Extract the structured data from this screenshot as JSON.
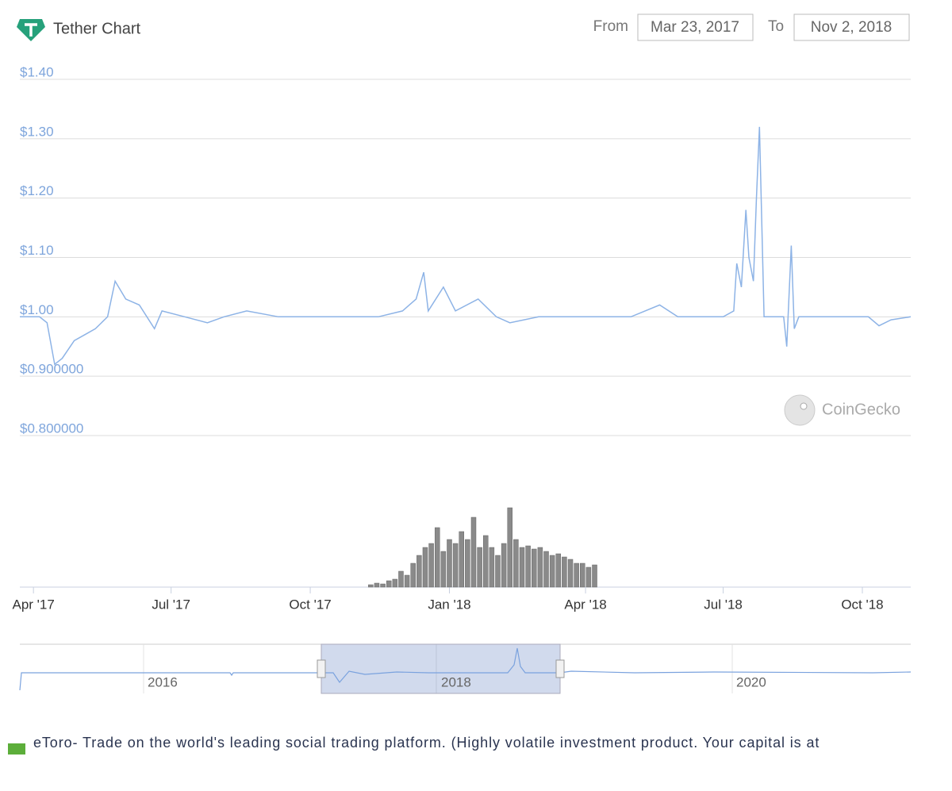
{
  "header": {
    "title": "Tether Chart",
    "from_label": "From",
    "from_date": "Mar 23, 2017",
    "to_label": "To",
    "to_date": "Nov 2, 2018"
  },
  "watermark": "CoinGecko",
  "chart_data": {
    "type": "line",
    "xlim": [
      "2017-03-23",
      "2018-11-02"
    ],
    "xticks": [
      {
        "value": "2017-04-01",
        "label": "Apr '17"
      },
      {
        "value": "2017-07-01",
        "label": "Jul '17"
      },
      {
        "value": "2017-10-01",
        "label": "Oct '17"
      },
      {
        "value": "2018-01-01",
        "label": "Jan '18"
      },
      {
        "value": "2018-04-01",
        "label": "Apr '18"
      },
      {
        "value": "2018-07-01",
        "label": "Jul '18"
      },
      {
        "value": "2018-10-01",
        "label": "Oct '18"
      }
    ],
    "ylim": [
      0.8,
      1.4
    ],
    "yticks": [
      {
        "value": 1.4,
        "label": "$1.40"
      },
      {
        "value": 1.3,
        "label": "$1.30"
      },
      {
        "value": 1.2,
        "label": "$1.20"
      },
      {
        "value": 1.1,
        "label": "$1.10"
      },
      {
        "value": 1.0,
        "label": "$1.00"
      },
      {
        "value": 0.9,
        "label": "$0.900000"
      },
      {
        "value": 0.8,
        "label": "$0.800000"
      }
    ],
    "grid": true,
    "color": "#8db3e6",
    "x": [
      "2017-03-23",
      "2017-04-05",
      "2017-04-10",
      "2017-04-15",
      "2017-04-20",
      "2017-04-28",
      "2017-05-05",
      "2017-05-12",
      "2017-05-20",
      "2017-05-25",
      "2017-06-01",
      "2017-06-10",
      "2017-06-20",
      "2017-06-25",
      "2017-07-10",
      "2017-07-25",
      "2017-08-05",
      "2017-08-20",
      "2017-09-10",
      "2017-10-15",
      "2017-11-15",
      "2017-12-01",
      "2017-12-10",
      "2017-12-15",
      "2017-12-18",
      "2017-12-28",
      "2018-01-05",
      "2018-01-20",
      "2018-02-01",
      "2018-02-10",
      "2018-03-01",
      "2018-04-01",
      "2018-05-01",
      "2018-05-20",
      "2018-06-01",
      "2018-07-01",
      "2018-07-08",
      "2018-07-10",
      "2018-07-13",
      "2018-07-16",
      "2018-07-18",
      "2018-07-21",
      "2018-07-23",
      "2018-07-25",
      "2018-07-28",
      "2018-08-10",
      "2018-08-12",
      "2018-08-15",
      "2018-08-17",
      "2018-08-20",
      "2018-09-01",
      "2018-10-05",
      "2018-10-12",
      "2018-10-20",
      "2018-11-02"
    ],
    "values": [
      1.0,
      1.0,
      0.99,
      0.92,
      0.93,
      0.96,
      0.97,
      0.98,
      1.0,
      1.06,
      1.03,
      1.02,
      0.98,
      1.01,
      1.0,
      0.99,
      1.0,
      1.01,
      1.0,
      1.0,
      1.0,
      1.01,
      1.03,
      1.075,
      1.01,
      1.05,
      1.01,
      1.03,
      1.0,
      0.99,
      1.0,
      1.0,
      1.0,
      1.02,
      1.0,
      1.0,
      1.01,
      1.09,
      1.05,
      1.18,
      1.1,
      1.06,
      1.2,
      1.32,
      1.0,
      1.0,
      0.95,
      1.12,
      0.98,
      1.0,
      1.0,
      1.0,
      0.985,
      0.995,
      1.0
    ],
    "volume": {
      "color": "#8a8a8a",
      "ylim": [
        0,
        100
      ],
      "x": [
        "2017-11-10",
        "2017-11-14",
        "2017-11-18",
        "2017-11-22",
        "2017-11-26",
        "2017-11-30",
        "2017-12-04",
        "2017-12-08",
        "2017-12-12",
        "2017-12-16",
        "2017-12-20",
        "2017-12-24",
        "2017-12-28",
        "2018-01-01",
        "2018-01-05",
        "2018-01-09",
        "2018-01-13",
        "2018-01-17",
        "2018-01-21",
        "2018-01-25",
        "2018-01-29",
        "2018-02-02",
        "2018-02-06",
        "2018-02-10",
        "2018-02-14",
        "2018-02-18",
        "2018-02-22",
        "2018-02-26",
        "2018-03-02",
        "2018-03-06",
        "2018-03-10",
        "2018-03-14",
        "2018-03-18",
        "2018-03-22",
        "2018-03-26",
        "2018-03-30",
        "2018-04-03",
        "2018-04-07"
      ],
      "values": [
        3,
        5,
        4,
        8,
        10,
        20,
        15,
        30,
        40,
        50,
        55,
        75,
        45,
        60,
        55,
        70,
        60,
        88,
        50,
        65,
        50,
        40,
        55,
        100,
        60,
        50,
        52,
        48,
        50,
        45,
        40,
        42,
        38,
        35,
        30,
        30,
        25,
        28
      ]
    }
  },
  "navigator": {
    "labels": [
      "2016",
      "2018",
      "2020"
    ]
  },
  "footer": {
    "text": "eToro- Trade on the world's leading social trading platform. (Highly volatile investment product. Your capital is at"
  }
}
